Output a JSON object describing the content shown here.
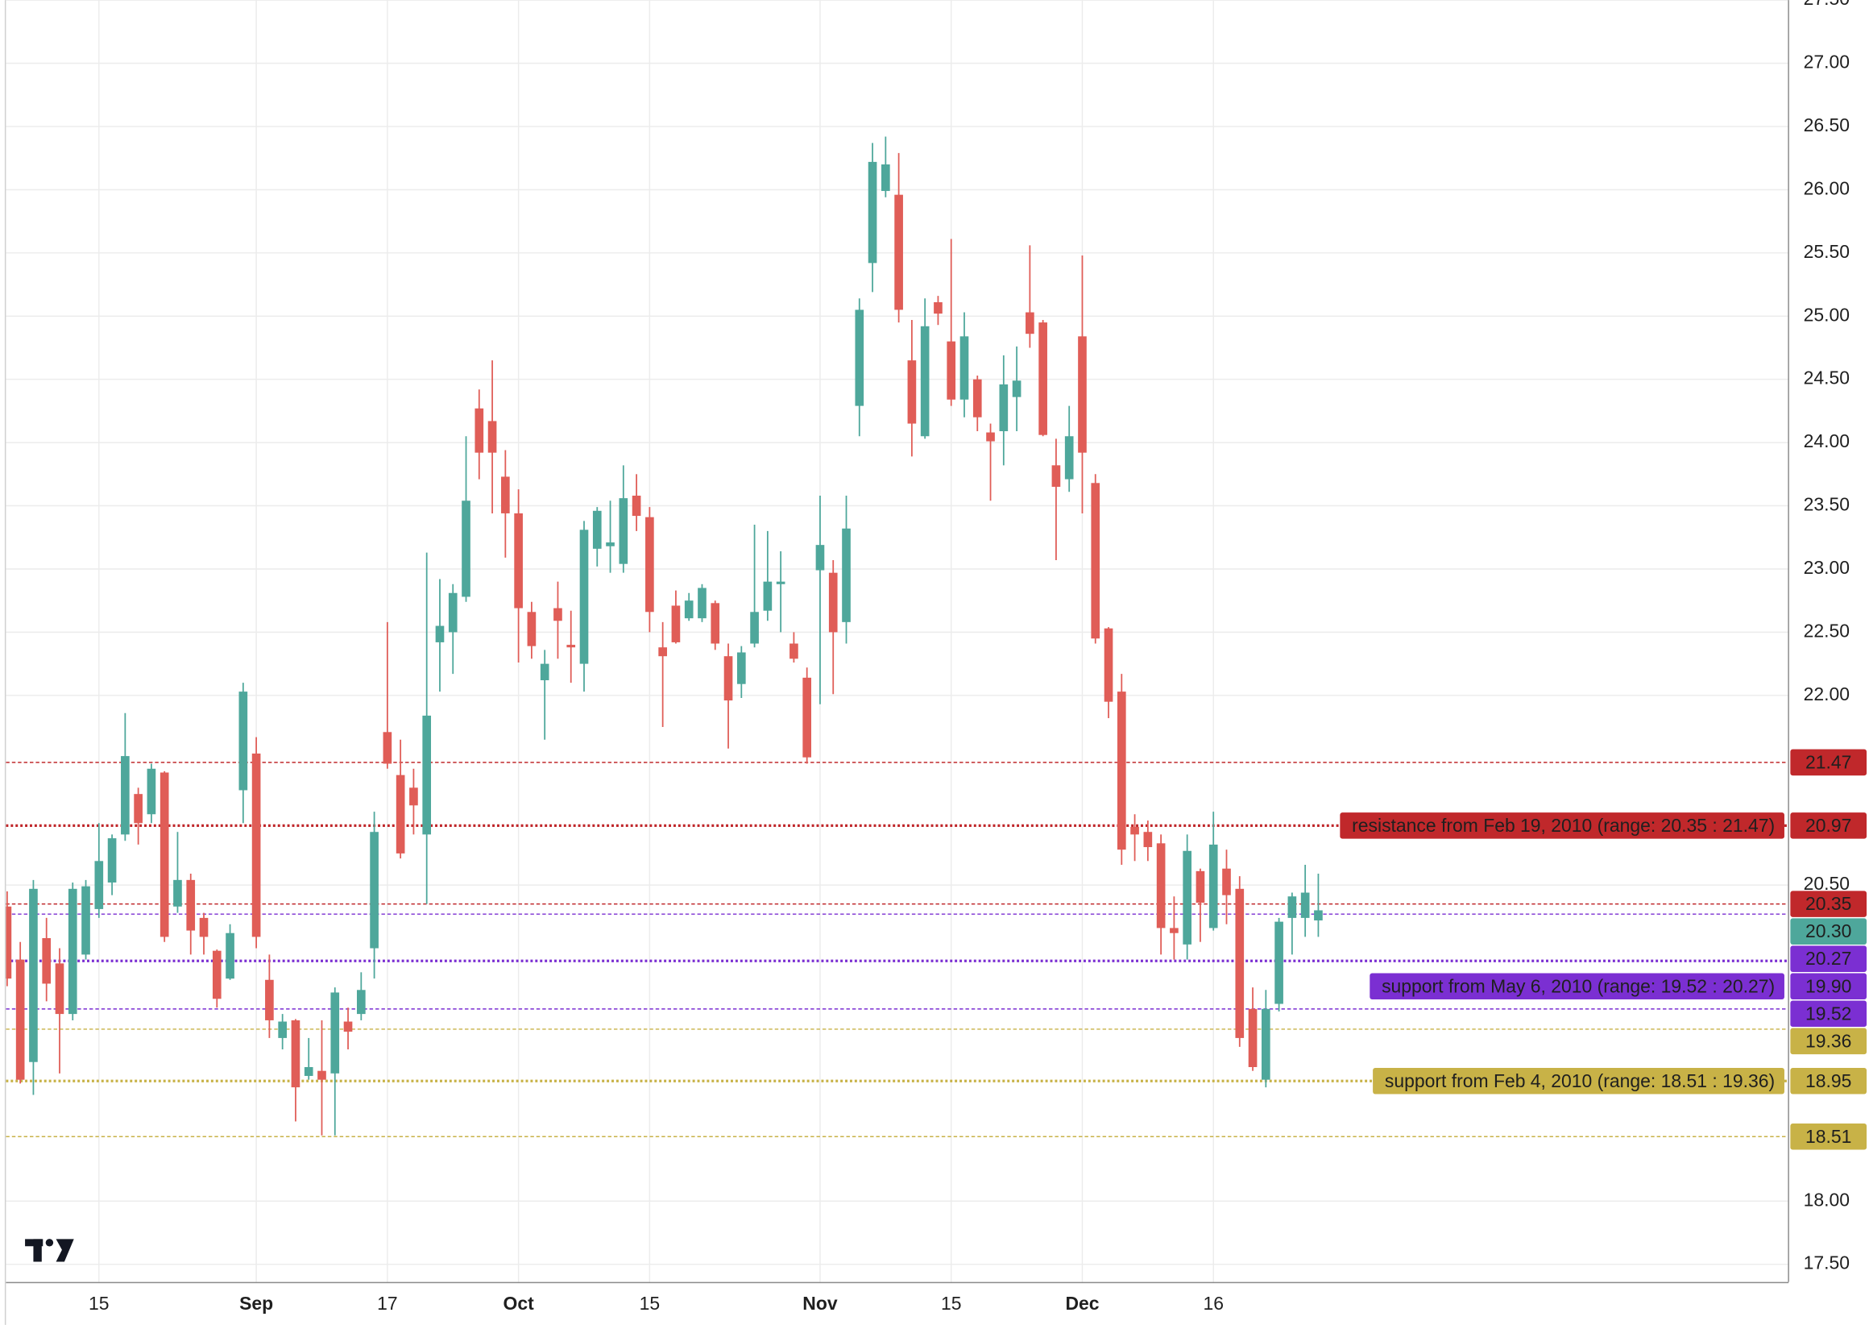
{
  "chart_data": {
    "type": "candlestick",
    "up_color": "#4ea79b",
    "down_color": "#e05d57",
    "open": [
      20.33,
      19.91,
      19.1,
      20.08,
      19.88,
      19.48,
      19.95,
      20.31,
      20.52,
      20.9,
      21.22,
      21.06,
      21.39,
      20.33,
      20.54,
      20.24,
      19.98,
      19.76,
      21.25,
      21.54,
      19.75,
      19.29,
      19.43,
      18.99,
      19.03,
      19.01,
      19.42,
      19.48,
      20.0,
      21.71,
      21.37,
      21.27,
      20.9,
      22.42,
      22.5,
      22.78,
      24.27,
      24.17,
      23.73,
      23.44,
      22.66,
      22.12,
      22.69,
      22.4,
      22.25,
      23.16,
      23.18,
      23.04,
      23.58,
      23.41,
      22.38,
      22.71,
      22.61,
      22.61,
      22.73,
      22.31,
      22.09,
      22.41,
      22.67,
      22.88,
      22.41,
      22.14,
      22.99,
      22.97,
      22.58,
      24.29,
      25.42,
      25.99,
      25.96,
      24.65,
      24.05,
      25.11,
      24.8,
      24.34,
      24.5,
      24.08,
      24.09,
      24.36,
      25.03,
      24.95,
      23.82,
      23.71,
      24.84,
      23.68,
      22.53,
      22.03,
      20.96,
      20.92,
      20.83,
      20.16,
      20.03,
      20.61,
      20.16,
      20.63,
      20.47,
      19.52,
      18.96,
      19.56,
      20.24,
      20.24,
      20.22
    ],
    "high": [
      20.45,
      20.05,
      20.54,
      20.24,
      20.0,
      20.52,
      20.54,
      20.99,
      20.9,
      21.86,
      21.27,
      21.46,
      21.4,
      20.92,
      20.59,
      20.28,
      19.99,
      20.19,
      22.1,
      21.67,
      19.95,
      19.48,
      19.44,
      19.29,
      19.43,
      19.69,
      19.53,
      19.81,
      21.08,
      22.58,
      21.65,
      21.42,
      23.13,
      22.92,
      22.88,
      24.05,
      24.42,
      24.65,
      23.94,
      23.63,
      22.74,
      22.36,
      22.9,
      22.67,
      23.38,
      23.49,
      23.54,
      23.82,
      23.75,
      23.49,
      22.58,
      22.83,
      22.81,
      22.88,
      22.75,
      22.41,
      22.39,
      23.35,
      23.3,
      23.14,
      22.5,
      22.22,
      23.58,
      23.07,
      23.58,
      25.14,
      26.37,
      26.42,
      26.29,
      24.97,
      25.14,
      25.16,
      25.61,
      25.03,
      24.53,
      24.15,
      24.69,
      24.76,
      25.56,
      24.97,
      24.03,
      24.29,
      25.48,
      23.75,
      22.54,
      22.17,
      21.06,
      21.01,
      20.9,
      20.41,
      20.9,
      20.63,
      21.08,
      20.78,
      20.57,
      19.69,
      19.67,
      20.24,
      20.44,
      20.66,
      20.59
    ],
    "low": [
      19.7,
      18.93,
      18.84,
      19.58,
      19.01,
      19.43,
      19.91,
      20.24,
      20.42,
      20.85,
      20.82,
      20.99,
      20.05,
      20.28,
      19.95,
      19.95,
      19.53,
      19.75,
      20.99,
      20.0,
      19.29,
      19.2,
      18.63,
      18.96,
      18.52,
      18.52,
      19.2,
      19.43,
      19.76,
      21.42,
      20.71,
      20.9,
      20.35,
      22.03,
      22.17,
      22.74,
      23.71,
      23.44,
      23.09,
      22.26,
      22.29,
      21.65,
      22.29,
      22.1,
      22.03,
      23.02,
      22.97,
      22.97,
      23.3,
      22.5,
      21.75,
      22.41,
      22.59,
      22.58,
      22.36,
      21.58,
      21.98,
      22.38,
      22.59,
      22.5,
      22.26,
      21.46,
      21.93,
      22.01,
      22.41,
      24.05,
      25.19,
      25.94,
      24.95,
      23.89,
      24.03,
      24.93,
      24.29,
      24.2,
      24.09,
      23.54,
      23.82,
      24.09,
      24.75,
      24.05,
      23.07,
      23.61,
      23.44,
      22.41,
      21.82,
      20.66,
      20.69,
      20.69,
      19.95,
      19.91,
      19.91,
      20.05,
      20.14,
      20.19,
      19.22,
      19.03,
      18.9,
      19.5,
      19.95,
      20.09,
      20.09
    ],
    "close": [
      19.76,
      18.96,
      20.47,
      19.72,
      19.48,
      20.47,
      20.49,
      20.69,
      20.87,
      21.52,
      20.99,
      21.42,
      20.09,
      20.54,
      20.14,
      20.09,
      19.6,
      20.12,
      22.03,
      20.09,
      19.43,
      19.42,
      18.9,
      19.06,
      18.96,
      19.65,
      19.34,
      19.67,
      20.92,
      21.46,
      20.75,
      21.13,
      21.84,
      22.55,
      22.81,
      23.54,
      23.92,
      23.92,
      23.44,
      22.69,
      22.39,
      22.25,
      22.59,
      22.38,
      23.31,
      23.46,
      23.21,
      23.56,
      23.42,
      22.66,
      22.31,
      22.42,
      22.75,
      22.85,
      22.41,
      21.96,
      22.34,
      22.66,
      22.9,
      22.9,
      22.29,
      21.51,
      23.19,
      22.5,
      23.32,
      25.05,
      26.22,
      26.2,
      25.05,
      24.15,
      24.92,
      25.02,
      24.34,
      24.84,
      24.2,
      24.01,
      24.46,
      24.49,
      24.86,
      24.06,
      23.65,
      24.05,
      23.92,
      22.45,
      21.95,
      20.78,
      20.9,
      20.8,
      20.16,
      20.12,
      20.77,
      20.36,
      20.82,
      20.42,
      19.29,
      19.06,
      19.52,
      20.21,
      20.41,
      20.44,
      20.3
    ],
    "last_price_label": "20.30",
    "levels": [
      {
        "label": "resistance from Feb 19, 2010 (range: 20.35 : 21.47)",
        "value": 20.97,
        "low": 20.35,
        "high": 21.47,
        "color": "#c0282b",
        "text_color": "#ffffff"
      },
      {
        "label": "support from May 6, 2010 (range: 19.52 : 20.27)",
        "value": 19.9,
        "value_label": "19.90",
        "low": 19.52,
        "high": 20.27,
        "color": "#7b2fd2",
        "text_color": "#ffffff"
      },
      {
        "label": "support from Feb 4, 2010 (range: 18.51 : 19.36)",
        "value": 18.95,
        "low": 18.51,
        "high": 19.36,
        "color": "#c8b247",
        "text_color": "#1a1a1a"
      }
    ],
    "xlim": [
      0,
      136
    ],
    "xticks": [
      {
        "value": 7,
        "label": "15"
      },
      {
        "value": 19,
        "label": "Sep"
      },
      {
        "value": 29,
        "label": "17"
      },
      {
        "value": 39,
        "label": "Oct"
      },
      {
        "value": 49,
        "label": "15"
      },
      {
        "value": 62,
        "label": "Nov"
      },
      {
        "value": 72,
        "label": "15"
      },
      {
        "value": 82,
        "label": "Dec"
      },
      {
        "value": 92,
        "label": "16"
      }
    ],
    "ylim": [
      17.36,
      27.5
    ],
    "yticks": [
      {
        "value": 27.5,
        "label": "27.50"
      },
      {
        "value": 27,
        "label": "27.00"
      },
      {
        "value": 26.5,
        "label": "26.50"
      },
      {
        "value": 26,
        "label": "26.00"
      },
      {
        "value": 25.5,
        "label": "25.50"
      },
      {
        "value": 25,
        "label": "25.00"
      },
      {
        "value": 24.5,
        "label": "24.50"
      },
      {
        "value": 24,
        "label": "24.00"
      },
      {
        "value": 23.5,
        "label": "23.50"
      },
      {
        "value": 23,
        "label": "23.00"
      },
      {
        "value": 22.5,
        "label": "22.50"
      },
      {
        "value": 22,
        "label": "22.00"
      },
      {
        "value": 20.5,
        "label": "20.50"
      },
      {
        "value": 18,
        "label": "18.00"
      },
      {
        "value": 17.5,
        "label": "17.50"
      }
    ],
    "grid": true
  }
}
